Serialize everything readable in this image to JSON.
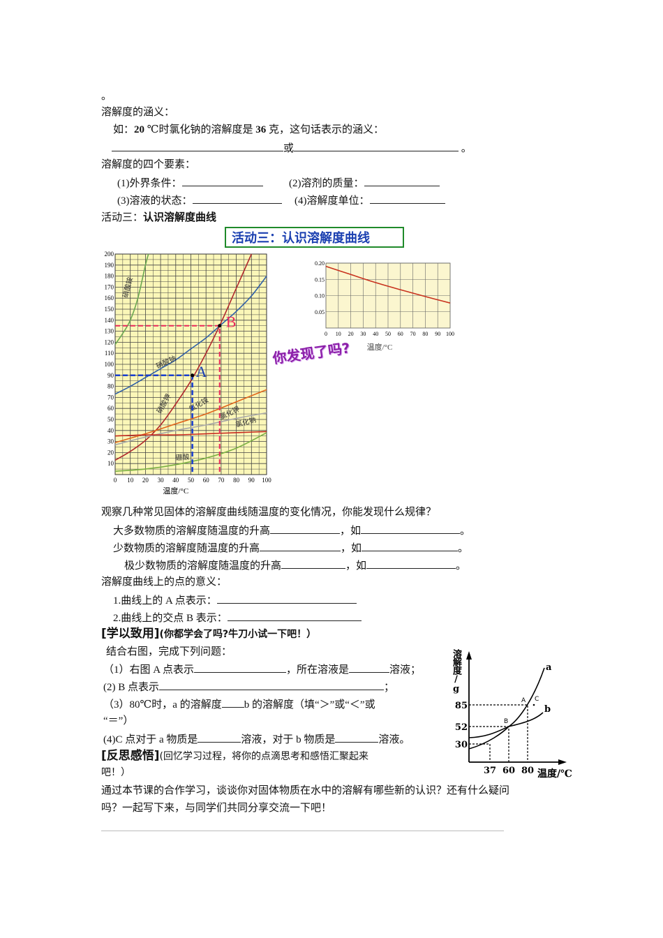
{
  "top_mark": "。",
  "meaning": {
    "heading": "溶解度的涵义：",
    "example_prefix": "如：",
    "example_temp": "20",
    "example_mid": " ℃时氯化钠的溶解度是",
    "example_value": "36",
    "example_suffix": "克，这句话表示的涵义：",
    "or_word": "或",
    "end_mark": "。"
  },
  "elements": {
    "heading": "溶解度的四个要素：",
    "items": [
      "(1)外界条件：",
      "(2)溶剂的质量：",
      "(3)溶液的状态：",
      "(4)溶解度单位："
    ]
  },
  "activity3": {
    "prefix": "活动三：",
    "title": "认识溶解度曲线",
    "banner": "活动三：认识溶解度曲线"
  },
  "figure_main": {
    "xlabel": "温度/°C",
    "x_ticks": [
      "0",
      "10",
      "20",
      "30",
      "40",
      "50",
      "60",
      "70",
      "80",
      "90",
      "100"
    ],
    "y_ticks": [
      "10",
      "20",
      "30",
      "40",
      "50",
      "60",
      "70",
      "80",
      "90",
      "100",
      "110",
      "120",
      "130",
      "140",
      "150",
      "160",
      "170",
      "180",
      "190",
      "200"
    ],
    "point_a": "A",
    "point_b": "B",
    "point_a_value": [
      51,
      90
    ],
    "point_b_value": [
      69,
      135
    ],
    "curves": [
      {
        "name": "硝酸铵",
        "color": "#6aa84f",
        "points": [
          [
            0,
            118
          ],
          [
            5,
            128
          ],
          [
            10,
            140
          ],
          [
            15,
            160
          ],
          [
            20,
            190
          ],
          [
            22,
            200
          ]
        ]
      },
      {
        "name": "硝酸钠",
        "color": "#2f5fa8",
        "points": [
          [
            0,
            73
          ],
          [
            10,
            80
          ],
          [
            20,
            88
          ],
          [
            30,
            96
          ],
          [
            40,
            104
          ],
          [
            50,
            114
          ],
          [
            60,
            124
          ],
          [
            70,
            136
          ],
          [
            80,
            148
          ],
          [
            90,
            162
          ],
          [
            100,
            180
          ]
        ]
      },
      {
        "name": "硝酸钾",
        "color": "#b0282c",
        "points": [
          [
            0,
            13
          ],
          [
            10,
            21
          ],
          [
            20,
            31
          ],
          [
            30,
            45
          ],
          [
            40,
            64
          ],
          [
            50,
            85
          ],
          [
            60,
            110
          ],
          [
            70,
            138
          ],
          [
            80,
            169
          ],
          [
            90,
            202
          ]
        ]
      },
      {
        "name": "氯化铵",
        "color": "#e0661c",
        "points": [
          [
            0,
            29
          ],
          [
            20,
            37
          ],
          [
            40,
            46
          ],
          [
            60,
            55
          ],
          [
            80,
            66
          ],
          [
            100,
            77
          ]
        ]
      },
      {
        "name": "氯化钾",
        "color": "#a8a8a8",
        "points": [
          [
            0,
            27
          ],
          [
            20,
            34
          ],
          [
            40,
            40
          ],
          [
            60,
            45
          ],
          [
            80,
            51
          ],
          [
            100,
            56
          ]
        ]
      },
      {
        "name": "氯化钠",
        "color": "#c8281e",
        "points": [
          [
            0,
            35
          ],
          [
            20,
            36
          ],
          [
            40,
            36
          ],
          [
            60,
            37
          ],
          [
            80,
            38
          ],
          [
            100,
            39
          ]
        ]
      },
      {
        "name": "硼酸",
        "color": "#7bb043",
        "points": [
          [
            0,
            3
          ],
          [
            20,
            5
          ],
          [
            40,
            9
          ],
          [
            60,
            15
          ],
          [
            80,
            24
          ],
          [
            100,
            38
          ]
        ]
      }
    ]
  },
  "figure_small": {
    "xlabel": "温度/°C",
    "x_ticks": [
      "0",
      "10",
      "20",
      "30",
      "40",
      "50",
      "60",
      "70",
      "80",
      "90",
      "100"
    ],
    "y_ticks": [
      "0.05",
      "0.10",
      "0.15",
      "0.20"
    ],
    "points": [
      [
        0,
        0.19
      ],
      [
        20,
        0.165
      ],
      [
        40,
        0.14
      ],
      [
        60,
        0.118
      ],
      [
        80,
        0.097
      ],
      [
        100,
        0.077
      ]
    ]
  },
  "discover_text": "你发现了吗?",
  "observe": {
    "question": "观察几种常见固体的溶解度曲线随温度的变化情况，你能发现什么规律？",
    "rules": [
      "大多数物质的溶解度随温度的升高",
      "少数物质的溶解度随温度的升高",
      "极少数物质的溶解度随温度的升高"
    ],
    "example_word": "，如",
    "end_mark": "。"
  },
  "points_meaning": {
    "heading": "溶解度曲线上的点的意义：",
    "items": [
      "1.曲线上的 A 点表示：",
      "2.曲线上的交点 B 表示："
    ]
  },
  "apply": {
    "heading": "[学以致用]",
    "subheading": "(你都学会了吗?牛刀小试一下吧！）",
    "intro": "结合右图，完成下列问题：",
    "q1a": "（1）右图 A 点表示",
    "q1b": "，所在溶液是",
    "q1c": "溶液；",
    "q2a": "(2) B 点表示",
    "q2b": "；",
    "q3a": "（3）80℃时，a 的溶解度",
    "q3b": "b 的溶解度（填“＞”或“＜”或",
    "q3c": "“＝”）",
    "q4a": "(4)C 点对于 a 物质是",
    "q4b": "溶液，对于 b 物质是",
    "q4c": "溶液。"
  },
  "figure_ab": {
    "ylabel": "溶解度/g",
    "xlabel": "温度/℃",
    "x_ticks": [
      "37",
      "60",
      "80"
    ],
    "y_ticks": [
      "85",
      "52",
      "30"
    ],
    "curve_a": "a",
    "curve_b": "b",
    "point_a": "A",
    "point_b": "B",
    "point_c": "C"
  },
  "reflect": {
    "heading": "[反思感悟]",
    "subheading": "(回忆学习过程，将你的点滴思考和感悟汇聚起来",
    "subheading2": "吧！）",
    "body1": "通过本节课的合作学习，谈谈你对固体物质在水中的溶解有哪些新的认识？还有什么疑问",
    "body2": "吗？一起写下来，与同学们共同分享交流一下吧！"
  }
}
